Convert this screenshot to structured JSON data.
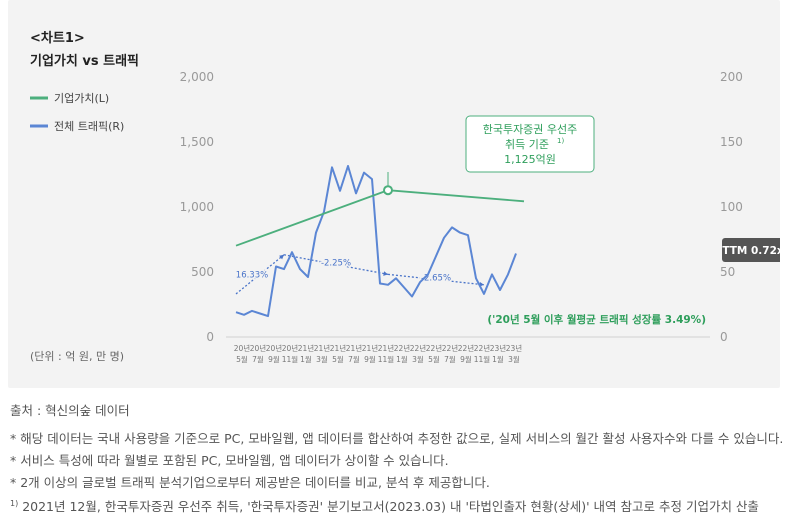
{
  "chart_data": {
    "type": "line",
    "title_line1": "<차트1>",
    "title_line2": "기업가치 vs 트래픽",
    "unit_label": "(단위 : 억 원, 만 명)",
    "left_axis": {
      "ticks": [
        "2,000",
        "1,500",
        "1,000",
        "500",
        "0"
      ],
      "ylim": [
        0,
        2000
      ]
    },
    "right_axis": {
      "ticks": [
        "200",
        "150",
        "100",
        "50",
        "0"
      ],
      "ylim": [
        0,
        200
      ]
    },
    "x_ticks": [
      {
        "yr": "20년",
        "mo": "5월"
      },
      {
        "yr": "20년",
        "mo": "7월"
      },
      {
        "yr": "20년",
        "mo": "9월"
      },
      {
        "yr": "20년",
        "mo": "11월"
      },
      {
        "yr": "21년",
        "mo": "1월"
      },
      {
        "yr": "21년",
        "mo": "3월"
      },
      {
        "yr": "21년",
        "mo": "5월"
      },
      {
        "yr": "21년",
        "mo": "7월"
      },
      {
        "yr": "21년",
        "mo": "9월"
      },
      {
        "yr": "21년",
        "mo": "11월"
      },
      {
        "yr": "22년",
        "mo": "1월"
      },
      {
        "yr": "22년",
        "mo": "3월"
      },
      {
        "yr": "22년",
        "mo": "5월"
      },
      {
        "yr": "22년",
        "mo": "7월"
      },
      {
        "yr": "22년",
        "mo": "9월"
      },
      {
        "yr": "22년",
        "mo": "11월"
      },
      {
        "yr": "23년",
        "mo": "1월"
      },
      {
        "yr": "23년",
        "mo": "3월"
      }
    ],
    "series": [
      {
        "name": "기업가치(L)",
        "color": "#4caf7d",
        "axis": "left",
        "points": [
          [
            0,
            700
          ],
          [
            19,
            1125
          ],
          [
            36,
            1040
          ]
        ]
      },
      {
        "name": "전체 트래픽(R)",
        "color": "#5b86d4",
        "axis": "right",
        "values": [
          19,
          17,
          20,
          18,
          16,
          54,
          52,
          65,
          52,
          46,
          80,
          96,
          130,
          112,
          131,
          110,
          126,
          121,
          41,
          40,
          45,
          38,
          31,
          42,
          48,
          62,
          76,
          84,
          80,
          78,
          45,
          33,
          48,
          36,
          48,
          64
        ]
      }
    ],
    "trend_annotations": [
      {
        "label": "16.33%",
        "from": [
          0,
          33
        ],
        "to": [
          6,
          63
        ]
      },
      {
        "label": "-2.25%",
        "from": [
          6,
          63
        ],
        "to": [
          19,
          48
        ]
      },
      {
        "label": "-2.65%",
        "from": [
          19,
          48
        ],
        "to": [
          31,
          40
        ]
      }
    ],
    "callout": {
      "line1": "한국투자증권 우선주",
      "line2": "취득 기준",
      "sup": "1)",
      "line3": "1,125억원"
    },
    "ttm_badge": "TTM 0.72x",
    "growth_note": "('20년 5월 이후 월평균 트래픽 성장률 3.49%)"
  },
  "footer": {
    "source": "출처 : 혁신의숲 데이터",
    "note1": "* 해당 데이터는 국내 사용량을 기준으로 PC, 모바일웹, 앱 데이터를 합산하여 추정한 값으로, 실제 서비스의 월간 활성 사용자수와 다를 수 있습니다.",
    "note2": "* 서비스 특성에 따라 월별로 포함된 PC, 모바일웹, 앱 데이터가 상이할 수 있습니다.",
    "note3": "* 2개 이상의 글로벌 트래픽 분석기업으로부터 제공받은 데이터를 비교, 분석 후 제공합니다.",
    "footnote_mark": "1)",
    "footnote": " 2021년 12월, 한국투자증권 우선주 취득, '한국투자증권' 분기보고서(2023.03) 내 '타법인출자 현황(상세)' 내역 참고로 추정 기업가치 산출"
  },
  "colors": {
    "value_line": "#4caf7d",
    "traffic_line": "#5b86d4",
    "badge_bg": "#555555",
    "green_text": "#2e9e5b"
  }
}
